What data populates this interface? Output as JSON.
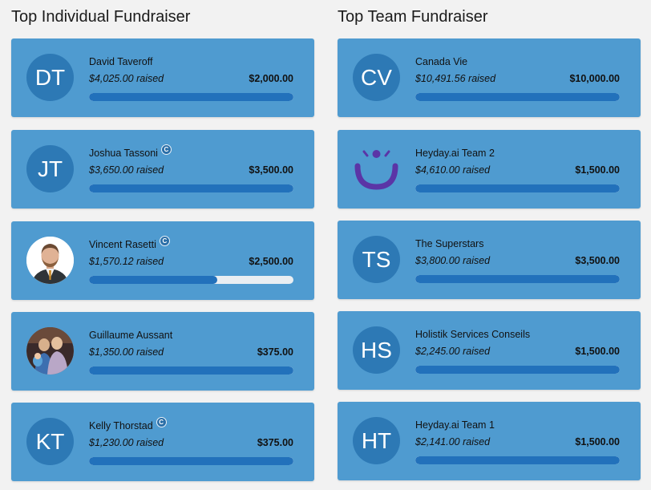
{
  "individual": {
    "title": "Top Individual Fundraiser",
    "items": [
      {
        "initials": "DT",
        "name": "David Taveroff",
        "raised": "$4,025.00 raised",
        "goal": "$2,000.00",
        "progress": 1.0,
        "badge": "",
        "avatar": "initials"
      },
      {
        "initials": "JT",
        "name": "Joshua Tassoni",
        "raised": "$3,650.00 raised",
        "goal": "$3,500.00",
        "progress": 1.0,
        "badge": "C",
        "avatar": "initials"
      },
      {
        "initials": "",
        "name": "Vincent Rasetti",
        "raised": "$1,570.12 raised",
        "goal": "$2,500.00",
        "progress": 0.628,
        "badge": "C",
        "avatar": "photo-man-suit"
      },
      {
        "initials": "",
        "name": "Guillaume Aussant",
        "raised": "$1,350.00 raised",
        "goal": "$375.00",
        "progress": 1.0,
        "badge": "",
        "avatar": "photo-group"
      },
      {
        "initials": "KT",
        "name": "Kelly Thorstad",
        "raised": "$1,230.00 raised",
        "goal": "$375.00",
        "progress": 1.0,
        "badge": "C",
        "avatar": "initials"
      }
    ]
  },
  "team": {
    "title": "Top Team Fundraiser",
    "items": [
      {
        "initials": "CV",
        "name": "Canada Vie",
        "raised": "$10,491.56 raised",
        "goal": "$10,000.00",
        "progress": 1.0,
        "avatar": "initials"
      },
      {
        "initials": "",
        "name": "Heyday.ai Team 2",
        "raised": "$4,610.00 raised",
        "goal": "$1,500.00",
        "progress": 1.0,
        "avatar": "heyday-logo"
      },
      {
        "initials": "TS",
        "name": "The Superstars",
        "raised": "$3,800.00 raised",
        "goal": "$3,500.00",
        "progress": 1.0,
        "avatar": "initials"
      },
      {
        "initials": "HS",
        "name": "Holistik Services Conseils",
        "raised": "$2,245.00 raised",
        "goal": "$1,500.00",
        "progress": 1.0,
        "avatar": "initials"
      },
      {
        "initials": "HT",
        "name": "Heyday.ai Team 1",
        "raised": "$2,141.00 raised",
        "goal": "$1,500.00",
        "progress": 1.0,
        "avatar": "initials"
      }
    ]
  },
  "colors": {
    "card": "#4f9bd0",
    "avatar": "#2d79b5",
    "bar": "#2271bb",
    "bar_track": "#e9eef2",
    "logo": "#5b35a6"
  }
}
